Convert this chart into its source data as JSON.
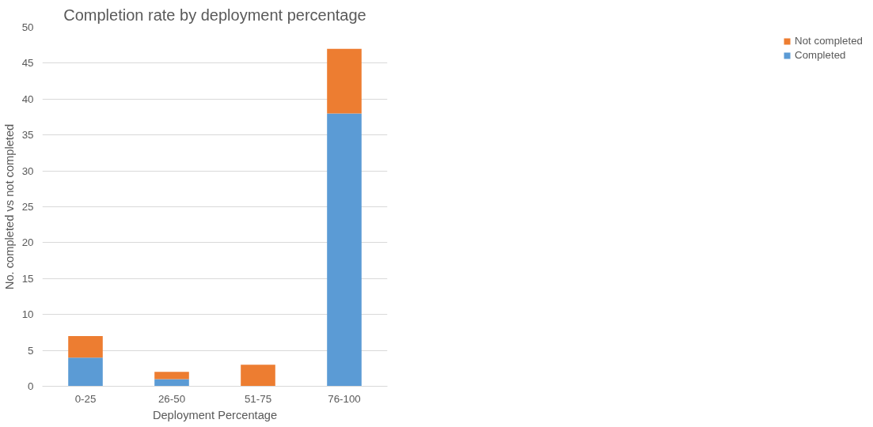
{
  "chart_data": {
    "type": "bar",
    "title": "Completion rate by deployment percentage",
    "xlabel": "Deployment Percentage",
    "ylabel": "No. completed vs not completed",
    "categories": [
      "0-25",
      "26-50",
      "51-75",
      "76-100"
    ],
    "stacked": true,
    "series": [
      {
        "name": "Completed",
        "color": "#5b9bd5",
        "values": [
          4,
          1,
          0,
          38
        ]
      },
      {
        "name": "Not completed",
        "color": "#ed7d31",
        "values": [
          3,
          1,
          3,
          9
        ]
      }
    ],
    "ylim": [
      0,
      50
    ],
    "yticks": [
      0,
      5,
      10,
      15,
      20,
      25,
      30,
      35,
      40,
      45,
      50
    ],
    "grid": "y",
    "legend": "right"
  }
}
